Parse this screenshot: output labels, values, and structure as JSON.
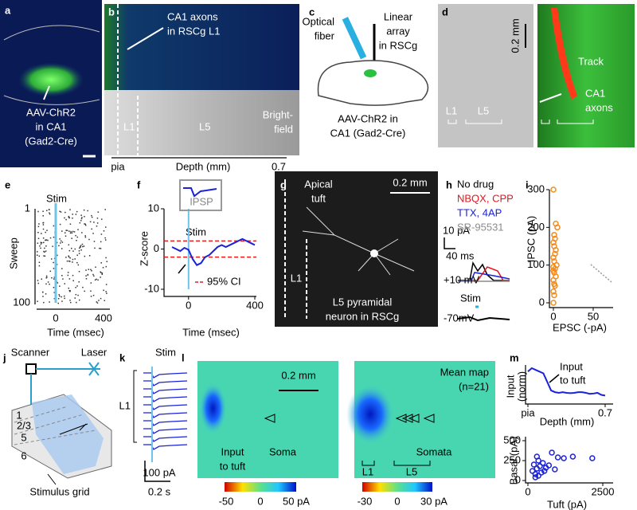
{
  "a": {
    "label": "a",
    "caption": [
      "AAV-ChR2",
      "in CA1",
      "(Gad2-Cre)"
    ]
  },
  "b": {
    "label": "b",
    "annotation": [
      "CA1 axons",
      "in RSCg L1"
    ],
    "layer_l1": "L1",
    "layer_l5": "L5",
    "brightfield": [
      "Bright-",
      "field"
    ],
    "axis_start": "pia",
    "axis_title": "Depth (mm)",
    "axis_end": "0.7"
  },
  "c": {
    "label": "c",
    "fiber": [
      "Optical",
      "fiber"
    ],
    "array": [
      "Linear",
      "array",
      "in RSCg"
    ],
    "caption": [
      "AAV-ChR2 in",
      "CA1 (Gad2-Cre)"
    ]
  },
  "d": {
    "label": "d",
    "scale": "0.2 mm",
    "track": "Track",
    "axons": [
      "CA1",
      "axons"
    ],
    "layer_l1": "L1",
    "layer_l5": "L5"
  },
  "e": {
    "label": "e",
    "stim": "Stim",
    "ylabel": "Sweep",
    "ytick_top": "1",
    "ytick_bottom": "100",
    "xticks": [
      "0",
      "400"
    ],
    "xlabel": "Time (msec)"
  },
  "f": {
    "label": "f",
    "inset": "IPSP",
    "stim": "Stim",
    "ci_label": "95% CI",
    "ylabel": "Z-score",
    "xlabel": "Time (msec)",
    "xlim": [
      -100,
      400
    ],
    "ylim": [
      -10,
      10
    ],
    "xticks": [
      0,
      400
    ],
    "yticks": [
      10,
      0,
      -10
    ],
    "ci": [
      -2,
      2
    ],
    "trace": {
      "x": [
        -100,
        -75,
        -50,
        -25,
        0,
        25,
        50,
        75,
        100,
        125,
        150,
        175,
        200,
        225,
        250,
        275,
        300,
        325,
        350,
        375,
        400
      ],
      "y": [
        0.5,
        0,
        -0.5,
        0.3,
        -0.2,
        -2.5,
        -4,
        -3.5,
        -2,
        -1.5,
        -0.5,
        0.5,
        1,
        0.5,
        1,
        1.5,
        2,
        2.5,
        2,
        1.5,
        1
      ]
    }
  },
  "g": {
    "label": "g",
    "apical": [
      "Apical",
      "tuft"
    ],
    "scale": "0.2 mm",
    "layer": "L1",
    "caption": [
      "L5 pyramidal",
      "neuron in RSCg"
    ]
  },
  "h": {
    "label": "h",
    "legend": [
      {
        "name": "No drug",
        "color": "#000000"
      },
      {
        "name": "NBQX, CPP",
        "color": "#e8141b"
      },
      {
        "name": "TTX, 4AP",
        "color": "#1a22d8"
      },
      {
        "name": "SR-95531",
        "color": "#8c8c8c"
      }
    ],
    "scale_y": "10 pA",
    "scale_x": "40 ms",
    "hold_pos": "+10 mV",
    "stim": "Stim",
    "hold_neg": "-70mV"
  },
  "i": {
    "label": "i",
    "ylabel": "IPSC (pA)",
    "xlabel": "EPSC (-pA)",
    "xlim": [
      0,
      50
    ],
    "ylim": [
      0,
      300
    ],
    "xticks": [
      0,
      50
    ],
    "yticks": [
      0,
      100,
      200,
      300
    ],
    "color": "#f28c1e",
    "points": {
      "x": [
        0,
        1,
        0,
        2,
        1,
        0,
        3,
        1,
        0,
        2,
        0,
        4,
        1,
        0,
        2,
        3,
        1,
        0,
        2,
        1,
        5,
        3,
        0
      ],
      "y": [
        0,
        20,
        30,
        45,
        50,
        60,
        70,
        80,
        85,
        90,
        95,
        100,
        110,
        120,
        130,
        140,
        150,
        160,
        170,
        180,
        200,
        210,
        300
      ]
    }
  },
  "j": {
    "label": "j",
    "scanner": "Scanner",
    "laser": "Laser",
    "layers": [
      "1",
      "2/3",
      "5",
      "6"
    ],
    "caption": "Stimulus grid"
  },
  "k": {
    "label": "k",
    "stim": "Stim",
    "layer": "L1",
    "scale_y": "100 pA",
    "scale_x": "0.2 s"
  },
  "l": {
    "label": "l",
    "scale": "0.2 mm",
    "input": [
      "Input",
      "to tuft"
    ],
    "soma": "Soma",
    "mean": [
      "Mean map",
      "(n=21)"
    ],
    "somata": "Somata",
    "layer_l1": "L1",
    "layer_l5": "L5",
    "colorbar_single": [
      "-50",
      "0",
      "50 pA"
    ],
    "colorbar_mean": [
      "-30",
      "0",
      "30 pA"
    ]
  },
  "m": {
    "label": "m",
    "profile": {
      "ylabel": [
        "Input",
        "(norm)"
      ],
      "annotation": [
        "Input",
        "to tuft"
      ],
      "xlabel": "Depth (mm)",
      "xlim": [
        0,
        0.7
      ],
      "ylim": [
        0,
        1
      ],
      "xticks": [
        {
          "value": 0,
          "label": "pia"
        },
        0.7
      ],
      "color": "#1a22d8",
      "depth": [
        0,
        0.035,
        0.07,
        0.105,
        0.14,
        0.175,
        0.21,
        0.245,
        0.28,
        0.315,
        0.35,
        0.385,
        0.42,
        0.455,
        0.49,
        0.525,
        0.56,
        0.595,
        0.63,
        0.665,
        0.7
      ],
      "input": [
        0.9,
        1,
        0.95,
        0.9,
        0.85,
        0.6,
        0.35,
        0.3,
        0.28,
        0.3,
        0.28,
        0.27,
        0.28,
        0.3,
        0.3,
        0.28,
        0.25,
        0.26,
        0.28,
        0.22,
        0.2
      ]
    },
    "scatter": {
      "ylabel": "Basal (pA)",
      "xlabel": "Tuft (pA)",
      "xlim": [
        0,
        2500
      ],
      "ylim": [
        0,
        500
      ],
      "xticks": [
        0,
        2500
      ],
      "yticks": [
        0,
        250,
        500
      ],
      "color": "#1a22d8",
      "tuft": [
        150,
        200,
        250,
        300,
        350,
        400,
        450,
        300,
        500,
        600,
        700,
        800,
        900,
        1000,
        1200,
        1500,
        350,
        550,
        250,
        2150
      ],
      "basal": [
        120,
        200,
        80,
        150,
        250,
        180,
        100,
        300,
        220,
        160,
        190,
        350,
        140,
        290,
        280,
        300,
        60,
        120,
        40,
        280
      ]
    }
  }
}
